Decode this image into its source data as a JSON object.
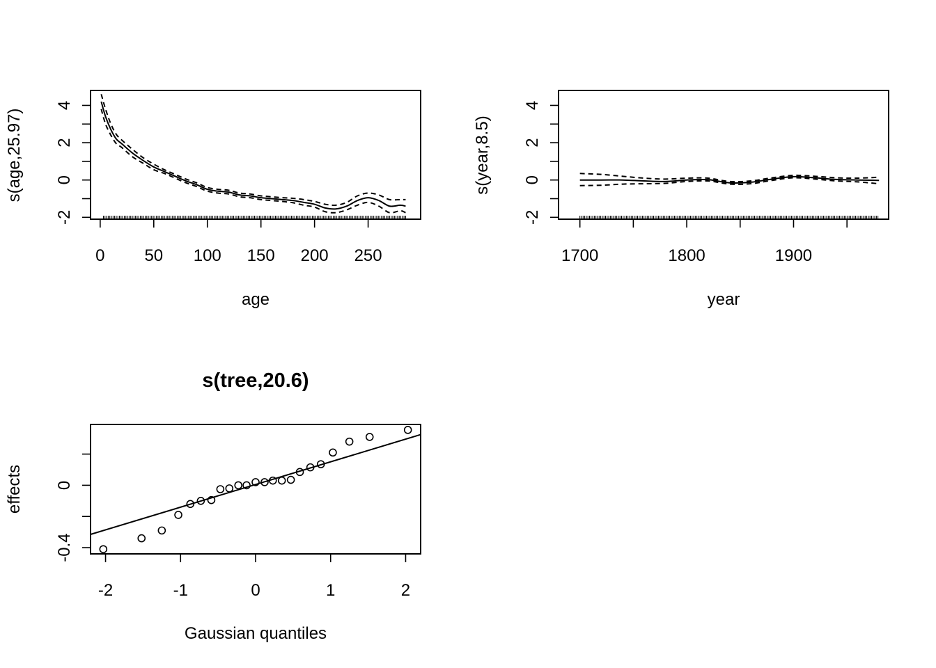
{
  "chart_data": [
    {
      "type": "line",
      "title": "",
      "xlabel": "age",
      "ylabel": "s(age,25.97)",
      "xlim": [
        -9,
        299
      ],
      "ylim": [
        -2.1,
        4.8
      ],
      "x_ticks": [
        0,
        50,
        100,
        150,
        200,
        250
      ],
      "y_ticks": [
        -2,
        0,
        2,
        4
      ],
      "y_minor_ticks": [
        -1,
        1,
        3
      ],
      "rug": {
        "from": 3,
        "to": 285,
        "step": 1.5
      },
      "series": [
        {
          "role": "fit",
          "x": [
            1,
            5,
            10,
            15,
            20,
            30,
            40,
            50,
            60,
            70,
            80,
            90,
            100,
            110,
            120,
            130,
            140,
            150,
            160,
            170,
            180,
            190,
            200,
            210,
            220,
            230,
            240,
            250,
            260,
            270,
            280,
            285
          ],
          "y": [
            4.2,
            3.4,
            2.7,
            2.2,
            1.95,
            1.45,
            1.05,
            0.7,
            0.45,
            0.2,
            -0.05,
            -0.25,
            -0.5,
            -0.6,
            -0.65,
            -0.8,
            -0.85,
            -0.95,
            -1.0,
            -1.05,
            -1.1,
            -1.2,
            -1.3,
            -1.5,
            -1.55,
            -1.4,
            -1.1,
            -0.95,
            -1.1,
            -1.4,
            -1.35,
            -1.4
          ]
        },
        {
          "role": "upper",
          "x": [
            1,
            5,
            10,
            15,
            20,
            30,
            40,
            50,
            60,
            70,
            80,
            90,
            100,
            110,
            120,
            130,
            140,
            150,
            160,
            170,
            180,
            190,
            200,
            210,
            220,
            230,
            240,
            250,
            260,
            270,
            280,
            285
          ],
          "y": [
            4.6,
            3.8,
            3.0,
            2.45,
            2.15,
            1.65,
            1.2,
            0.85,
            0.55,
            0.3,
            0.05,
            -0.15,
            -0.4,
            -0.5,
            -0.55,
            -0.7,
            -0.75,
            -0.85,
            -0.9,
            -0.95,
            -0.98,
            -1.05,
            -1.15,
            -1.3,
            -1.35,
            -1.2,
            -0.85,
            -0.7,
            -0.8,
            -1.05,
            -1.05,
            -1.05
          ]
        },
        {
          "role": "lower",
          "x": [
            1,
            5,
            10,
            15,
            20,
            30,
            40,
            50,
            60,
            70,
            80,
            90,
            100,
            110,
            120,
            130,
            140,
            150,
            160,
            170,
            180,
            190,
            200,
            210,
            220,
            230,
            240,
            250,
            260,
            270,
            280,
            285
          ],
          "y": [
            3.8,
            3.0,
            2.4,
            1.95,
            1.75,
            1.25,
            0.9,
            0.55,
            0.35,
            0.1,
            -0.15,
            -0.35,
            -0.6,
            -0.7,
            -0.75,
            -0.9,
            -0.95,
            -1.05,
            -1.1,
            -1.15,
            -1.22,
            -1.35,
            -1.45,
            -1.7,
            -1.75,
            -1.6,
            -1.35,
            -1.2,
            -1.4,
            -1.75,
            -1.65,
            -1.75
          ]
        }
      ]
    },
    {
      "type": "line",
      "title": "",
      "xlabel": "year",
      "ylabel": "s(year,8.5)",
      "xlim": [
        1680,
        1989
      ],
      "ylim": [
        -2.1,
        4.8
      ],
      "x_ticks": [
        1700,
        1800,
        1900
      ],
      "x_minor_ticks": [
        1750,
        1850,
        1950
      ],
      "y_ticks": [
        -2,
        0,
        2,
        4
      ],
      "y_minor_ticks": [
        -1,
        1,
        3
      ],
      "rug": {
        "from": 1700,
        "to": 1980,
        "step": 1.5
      },
      "series": [
        {
          "role": "fit",
          "x": [
            1700,
            1720,
            1740,
            1760,
            1780,
            1800,
            1820,
            1840,
            1860,
            1880,
            1900,
            1920,
            1940,
            1960,
            1980
          ],
          "y": [
            0.0,
            0.0,
            0.0,
            -0.05,
            -0.08,
            0.0,
            0.02,
            -0.15,
            -0.12,
            0.05,
            0.18,
            0.12,
            0.03,
            0.0,
            -0.02
          ]
        },
        {
          "role": "upper",
          "x": [
            1700,
            1720,
            1740,
            1760,
            1780,
            1800,
            1820,
            1840,
            1860,
            1880,
            1900,
            1920,
            1940,
            1960,
            1980
          ],
          "y": [
            0.35,
            0.3,
            0.2,
            0.1,
            0.05,
            0.1,
            0.1,
            -0.08,
            -0.05,
            0.12,
            0.25,
            0.2,
            0.12,
            0.1,
            0.15
          ]
        },
        {
          "role": "lower",
          "x": [
            1700,
            1720,
            1740,
            1760,
            1780,
            1800,
            1820,
            1840,
            1860,
            1880,
            1900,
            1920,
            1940,
            1960,
            1980
          ],
          "y": [
            -0.3,
            -0.28,
            -0.22,
            -0.2,
            -0.18,
            -0.08,
            -0.05,
            -0.22,
            -0.2,
            -0.02,
            0.12,
            0.05,
            -0.05,
            -0.1,
            -0.2
          ]
        }
      ]
    },
    {
      "type": "scatter",
      "title": "s(tree,20.6)",
      "xlabel": "Gaussian quantiles",
      "ylabel": "effects",
      "xlim": [
        -2.2,
        2.2
      ],
      "ylim": [
        -0.44,
        0.39
      ],
      "x_ticks": [
        -2,
        -1,
        0,
        1,
        2
      ],
      "y_ticks": [
        -0.4,
        0.0
      ],
      "y_minor_ticks": [
        -0.2,
        0.2
      ],
      "points": {
        "x": [
          -2.03,
          -1.52,
          -1.25,
          -1.03,
          -0.87,
          -0.73,
          -0.59,
          -0.47,
          -0.35,
          -0.23,
          -0.12,
          0.0,
          0.12,
          0.23,
          0.35,
          0.47,
          0.59,
          0.73,
          0.87,
          1.03,
          1.25,
          1.52,
          2.03
        ],
        "y": [
          -0.41,
          -0.34,
          -0.29,
          -0.19,
          -0.12,
          -0.1,
          -0.095,
          -0.025,
          -0.02,
          0.0,
          0.0,
          0.02,
          0.02,
          0.03,
          0.03,
          0.035,
          0.085,
          0.115,
          0.135,
          0.21,
          0.28,
          0.31,
          0.355
        ]
      },
      "reference_line": {
        "x": [
          -2.2,
          2.2
        ],
        "y": [
          -0.315,
          0.325
        ]
      }
    }
  ]
}
